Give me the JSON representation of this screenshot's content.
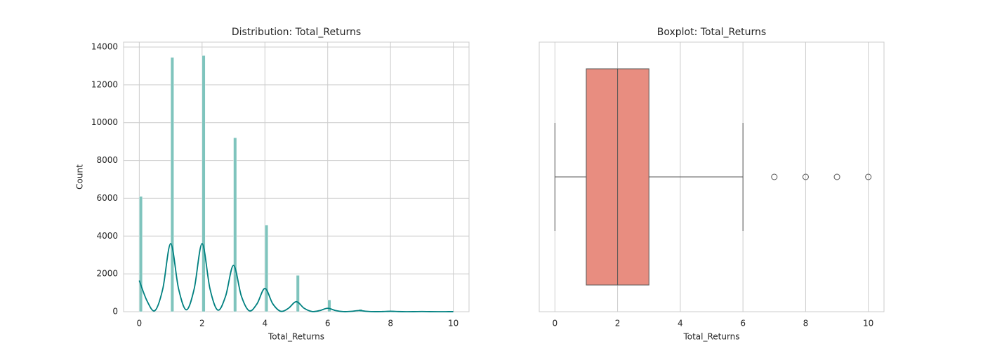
{
  "chart_data": [
    {
      "type": "histogram",
      "title": "Distribution: Total_Returns",
      "xlabel": "Total_Returns",
      "ylabel": "Count",
      "bins": [
        0,
        0.1,
        1,
        1.1,
        2,
        2.1,
        3,
        3.1,
        4,
        4.1,
        5,
        5.1,
        6,
        6.1,
        7,
        7.1,
        8,
        8.1,
        9,
        9.1,
        10
      ],
      "counts": [
        6100,
        0,
        13450,
        0,
        13550,
        0,
        9200,
        0,
        4580,
        0,
        1920,
        0,
        620,
        0,
        130,
        0,
        40,
        0,
        8,
        0
      ],
      "color": "#7fc4bd",
      "kde": {
        "color": "#008080",
        "x": [
          0,
          0.25,
          0.5,
          0.75,
          1,
          1.25,
          1.5,
          1.75,
          2,
          2.25,
          2.5,
          2.75,
          3,
          3.25,
          3.5,
          3.75,
          4,
          4.25,
          4.5,
          4.75,
          5,
          5.25,
          5.5,
          5.75,
          6,
          6.25,
          6.5,
          6.75,
          7,
          7.25,
          7.5,
          7.75,
          8,
          8.25,
          8.5,
          8.75,
          9,
          9.25,
          9.5,
          9.75,
          10
        ],
        "values": [
          1650,
          560,
          60,
          1220,
          3600,
          1220,
          100,
          1220,
          3600,
          1220,
          85,
          830,
          2450,
          830,
          50,
          420,
          1230,
          420,
          25,
          180,
          530,
          180,
          10,
          60,
          180,
          60,
          4,
          20,
          60,
          20,
          2,
          7,
          20,
          7,
          1,
          3,
          8,
          3,
          0,
          1,
          3
        ]
      },
      "xlim": [
        -0.5,
        10.5
      ],
      "xticks": [
        0,
        2,
        4,
        6,
        8,
        10
      ],
      "ylim": [
        0,
        14260
      ],
      "yticks": [
        0,
        2000,
        4000,
        6000,
        8000,
        10000,
        12000,
        14000
      ],
      "grid": true
    },
    {
      "type": "box",
      "title": "Boxplot: Total_Returns",
      "xlabel": "Total_Returns",
      "stats": {
        "whislo": 0,
        "q1": 1,
        "med": 2,
        "q3": 3,
        "whishi": 6
      },
      "fliers": [
        7,
        8,
        9,
        10
      ],
      "color": "#e88d80",
      "xlim": [
        -0.5,
        10.5
      ],
      "xticks": [
        0,
        2,
        4,
        6,
        8,
        10
      ],
      "grid": true
    }
  ]
}
